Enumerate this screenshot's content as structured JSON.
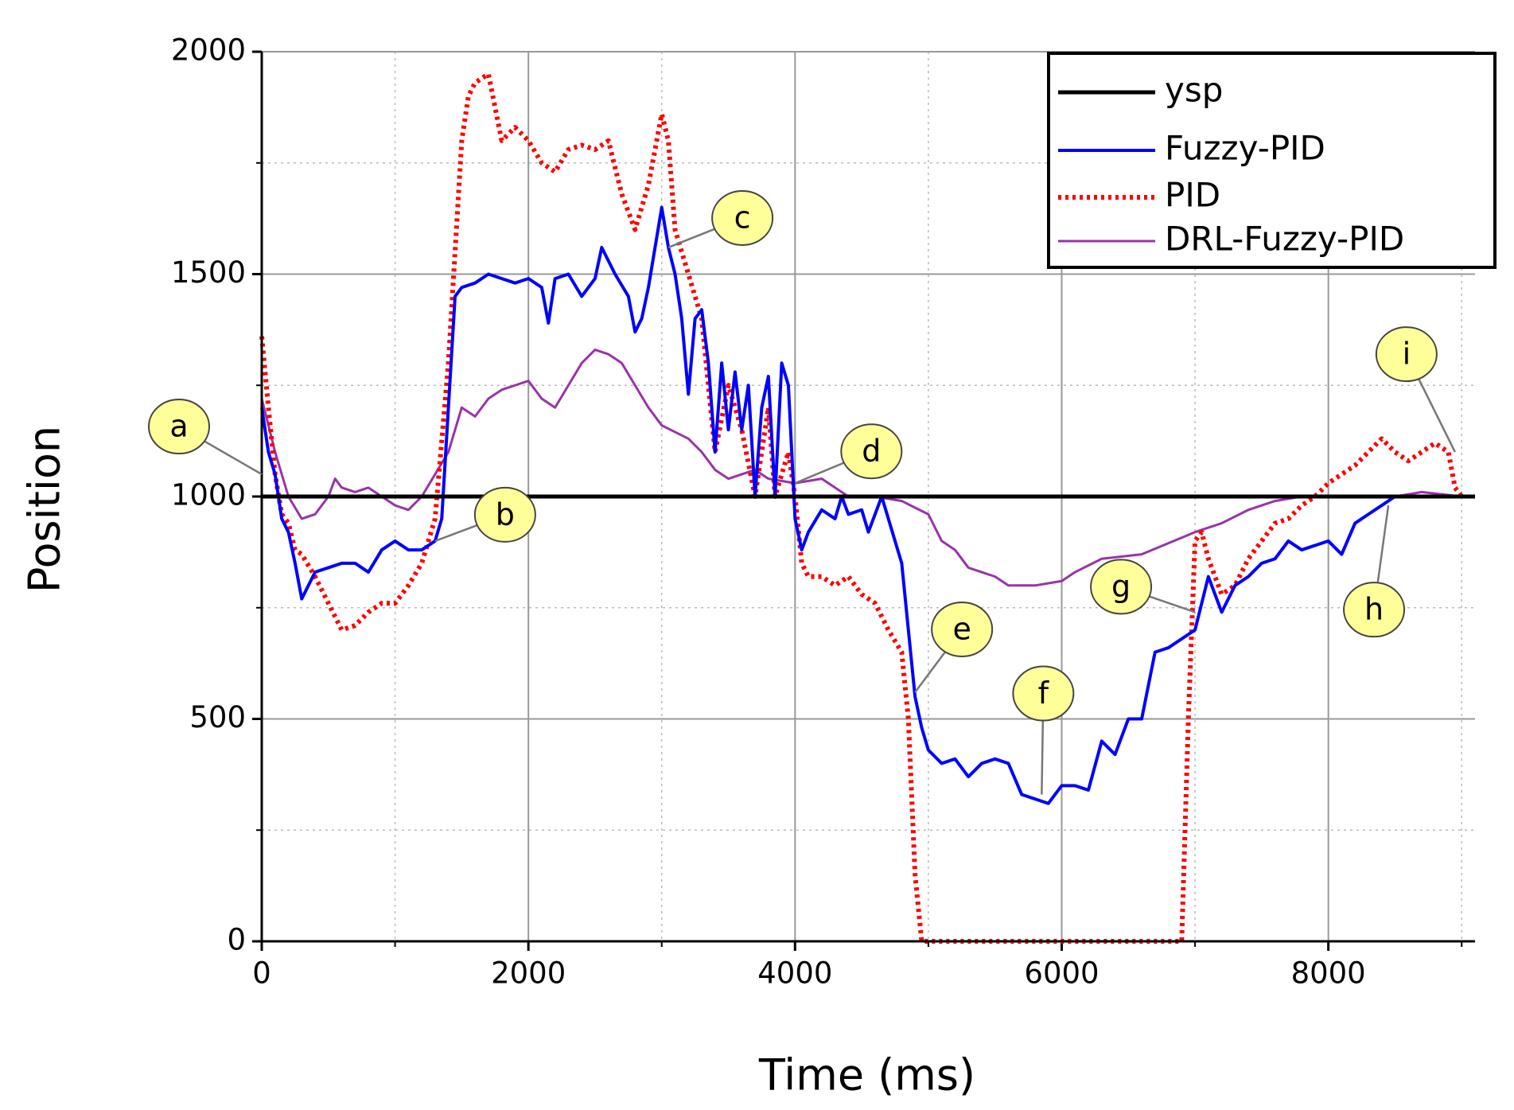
{
  "chart_data": {
    "type": "line",
    "xlabel": "Time (ms)",
    "ylabel": "Position",
    "xlim": [
      0,
      9100
    ],
    "ylim": [
      0,
      2000
    ],
    "xticks": [
      0,
      2000,
      4000,
      6000,
      8000
    ],
    "yticks": [
      0,
      500,
      1000,
      1500,
      2000
    ],
    "minor_xticks": [
      1000,
      3000,
      5000,
      7000,
      9000
    ],
    "minor_yticks": [
      250,
      750,
      1250,
      1750
    ],
    "grid": true,
    "legend": "upper right",
    "series": [
      {
        "name": "ysp",
        "color": "#000000",
        "style": "solid",
        "x": [
          0,
          9100
        ],
        "values": [
          1000,
          1000
        ]
      },
      {
        "name": "Fuzzy-PID",
        "color": "#0000ff",
        "style": "solid",
        "x": [
          0,
          50,
          100,
          150,
          200,
          250,
          300,
          350,
          400,
          500,
          600,
          700,
          800,
          900,
          1000,
          1100,
          1200,
          1300,
          1350,
          1400,
          1450,
          1500,
          1600,
          1700,
          1800,
          1900,
          2000,
          2100,
          2150,
          2200,
          2300,
          2400,
          2500,
          2550,
          2650,
          2750,
          2800,
          2850,
          2900,
          3000,
          3050,
          3100,
          3150,
          3200,
          3250,
          3300,
          3350,
          3400,
          3450,
          3500,
          3550,
          3600,
          3650,
          3700,
          3750,
          3800,
          3850,
          3900,
          3950,
          4000,
          4050,
          4100,
          4200,
          4300,
          4350,
          4400,
          4500,
          4550,
          4650,
          4700,
          4750,
          4800,
          4850,
          4900,
          4950,
          5000,
          5100,
          5200,
          5300,
          5400,
          5500,
          5600,
          5700,
          5800,
          5900,
          6000,
          6100,
          6200,
          6300,
          6400,
          6500,
          6600,
          6700,
          6800,
          6900,
          7000,
          7100,
          7200,
          7300,
          7400,
          7500,
          7600,
          7700,
          7800,
          7900,
          8000,
          8100,
          8200,
          8300,
          8400,
          8500
        ],
        "values": [
          1200,
          1100,
          1050,
          950,
          920,
          850,
          770,
          800,
          830,
          840,
          850,
          850,
          830,
          880,
          900,
          880,
          880,
          900,
          950,
          1200,
          1450,
          1470,
          1480,
          1500,
          1490,
          1480,
          1490,
          1470,
          1390,
          1490,
          1500,
          1450,
          1490,
          1560,
          1500,
          1450,
          1370,
          1400,
          1470,
          1650,
          1560,
          1500,
          1400,
          1230,
          1400,
          1420,
          1300,
          1100,
          1300,
          1150,
          1280,
          1150,
          1250,
          1000,
          1200,
          1270,
          1000,
          1300,
          1250,
          950,
          880,
          920,
          970,
          950,
          1000,
          960,
          970,
          920,
          1000,
          950,
          900,
          850,
          700,
          550,
          480,
          430,
          400,
          410,
          370,
          400,
          410,
          400,
          330,
          320,
          310,
          350,
          350,
          340,
          450,
          420,
          500,
          500,
          650,
          660,
          680,
          700,
          820,
          740,
          800,
          820,
          850,
          860,
          900,
          880,
          890,
          900,
          870,
          940,
          960,
          980,
          1000
        ]
      },
      {
        "name": "PID",
        "color": "#ff0000",
        "style": "dotted",
        "x": [
          0,
          50,
          100,
          150,
          200,
          250,
          300,
          400,
          500,
          600,
          700,
          800,
          900,
          1000,
          1100,
          1200,
          1300,
          1400,
          1450,
          1500,
          1550,
          1600,
          1700,
          1800,
          1900,
          2000,
          2100,
          2200,
          2300,
          2400,
          2500,
          2600,
          2700,
          2800,
          2900,
          3000,
          3050,
          3100,
          3200,
          3300,
          3400,
          3500,
          3600,
          3700,
          3800,
          3850,
          3950,
          4000,
          4050,
          4100,
          4200,
          4300,
          4400,
          4500,
          4600,
          4700,
          4800,
          4850,
          4900,
          4950,
          5000,
          6900,
          6950,
          7000,
          7050,
          7100,
          7200,
          7300,
          7400,
          7500,
          7600,
          7700,
          7800,
          7900,
          8000,
          8100,
          8200,
          8300,
          8400,
          8500,
          8600,
          8700,
          8800,
          8900,
          8950,
          9000
        ],
        "values": [
          1360,
          1200,
          1050,
          960,
          940,
          880,
          870,
          820,
          760,
          700,
          710,
          740,
          760,
          760,
          800,
          850,
          950,
          1300,
          1550,
          1800,
          1900,
          1930,
          1950,
          1800,
          1830,
          1800,
          1750,
          1730,
          1780,
          1790,
          1780,
          1800,
          1680,
          1600,
          1700,
          1860,
          1800,
          1600,
          1500,
          1400,
          1100,
          1250,
          1150,
          1000,
          1200,
          1000,
          1100,
          1000,
          850,
          820,
          820,
          800,
          820,
          780,
          760,
          700,
          650,
          500,
          150,
          0,
          0,
          0,
          500,
          900,
          920,
          860,
          780,
          800,
          860,
          900,
          940,
          950,
          980,
          1000,
          1030,
          1050,
          1070,
          1100,
          1130,
          1100,
          1080,
          1100,
          1120,
          1100,
          1020,
          1000
        ]
      },
      {
        "name": "DRL-Fuzzy-PID",
        "color": "#9933aa",
        "style": "solid",
        "x": [
          0,
          100,
          200,
          300,
          400,
          500,
          550,
          600,
          700,
          800,
          900,
          1000,
          1100,
          1200,
          1300,
          1400,
          1500,
          1600,
          1700,
          1800,
          1900,
          2000,
          2100,
          2200,
          2300,
          2400,
          2500,
          2600,
          2700,
          2800,
          2900,
          3000,
          3200,
          3300,
          3400,
          3500,
          3600,
          3700,
          3800,
          4000,
          4200,
          4400,
          4600,
          4800,
          5000,
          5100,
          5200,
          5300,
          5400,
          5500,
          5600,
          5800,
          6000,
          6100,
          6300,
          6600,
          7000,
          7200,
          7400,
          7600,
          7800,
          8000,
          8500,
          8700,
          9000
        ],
        "values": [
          1220,
          1100,
          1000,
          950,
          960,
          1000,
          1040,
          1020,
          1010,
          1020,
          1000,
          980,
          970,
          1000,
          1050,
          1100,
          1200,
          1180,
          1220,
          1240,
          1250,
          1260,
          1220,
          1200,
          1250,
          1300,
          1330,
          1320,
          1300,
          1250,
          1200,
          1160,
          1130,
          1100,
          1060,
          1040,
          1050,
          1060,
          1040,
          1030,
          1040,
          1000,
          1000,
          990,
          960,
          900,
          880,
          840,
          830,
          820,
          800,
          800,
          810,
          830,
          860,
          870,
          920,
          940,
          970,
          990,
          1000,
          1000,
          1000,
          1010,
          1000
        ]
      }
    ],
    "annotations": [
      {
        "text": "a",
        "x": 0,
        "y": 1050
      },
      {
        "text": "b",
        "x": 1300,
        "y": 900
      },
      {
        "text": "c",
        "x": 3050,
        "y": 1560
      },
      {
        "text": "d",
        "x": 4000,
        "y": 1030
      },
      {
        "text": "e",
        "x": 4900,
        "y": 560
      },
      {
        "text": "f",
        "x": 5850,
        "y": 330
      },
      {
        "text": "g",
        "x": 7000,
        "y": 740
      },
      {
        "text": "h",
        "x": 8450,
        "y": 980
      },
      {
        "text": "i",
        "x": 8950,
        "y": 1100
      }
    ]
  }
}
